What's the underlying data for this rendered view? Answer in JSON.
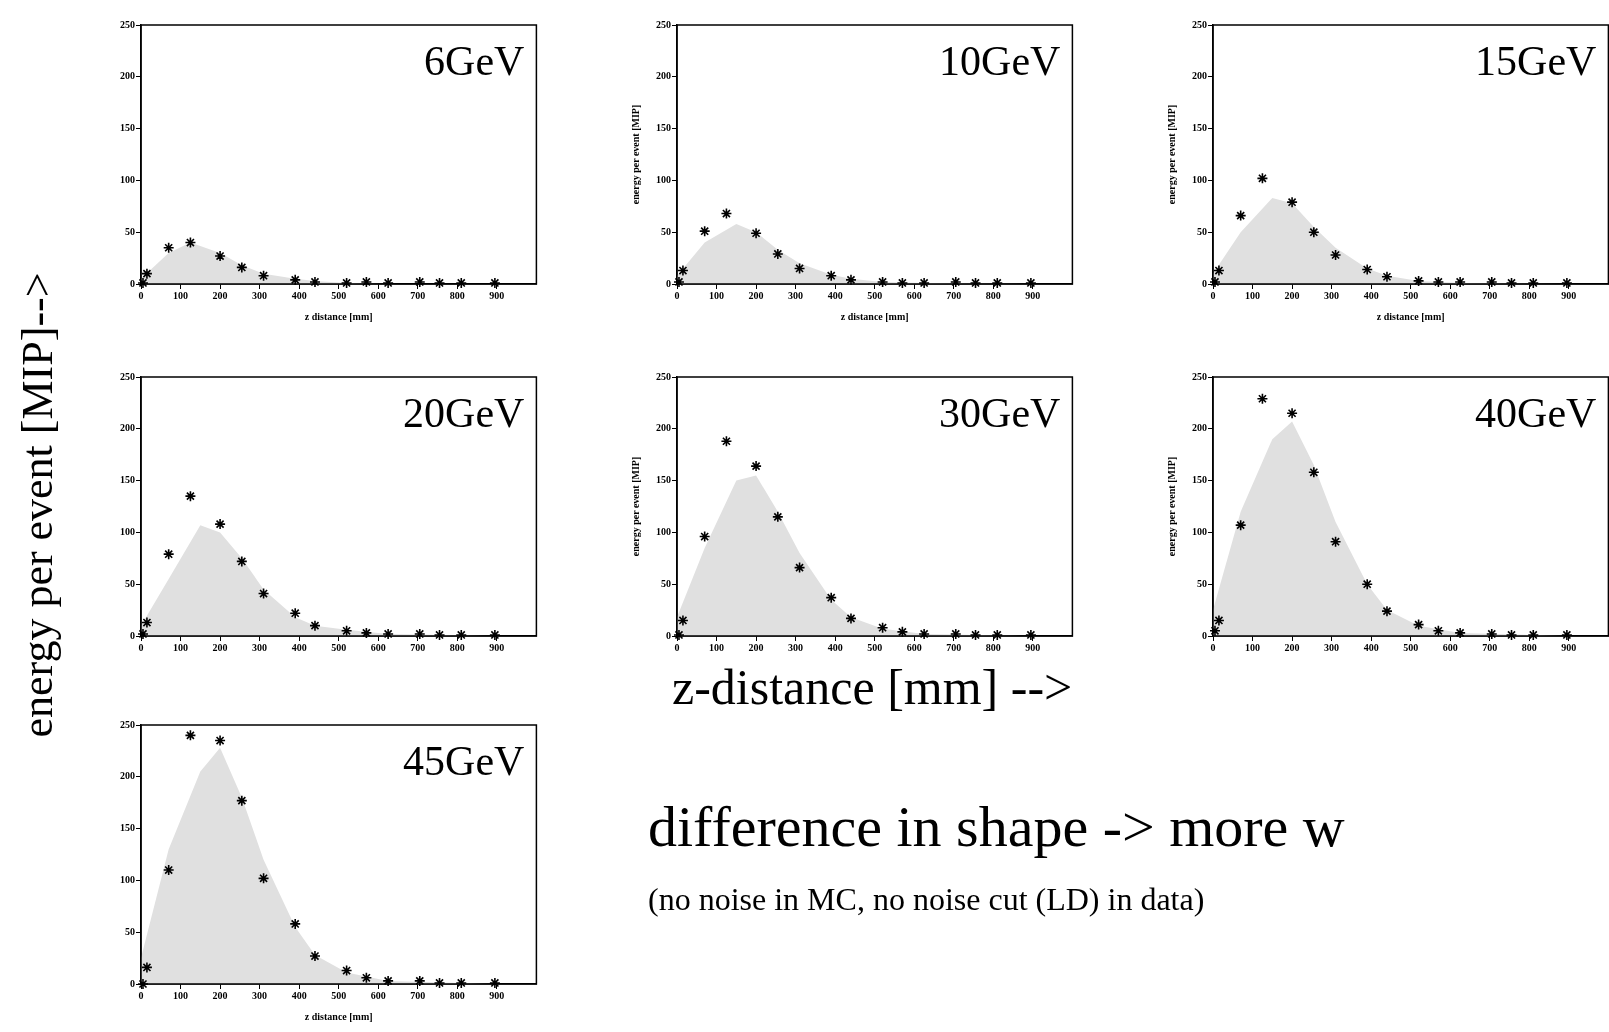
{
  "chart_data": [
    {
      "type": "scatter",
      "title": "6GeV",
      "xlabel": "z distance [mm]",
      "xlim": [
        0,
        1000
      ],
      "xticks": [
        0,
        100,
        200,
        300,
        400,
        500,
        600,
        700,
        800,
        900
      ],
      "ylim": [
        0,
        250
      ],
      "yticks": [
        0,
        50,
        100,
        150,
        200,
        250
      ],
      "grid": false,
      "legend": false,
      "annotations": [
        "energy per event [MIP]-->",
        "z-distance [mm]  -->",
        "difference in shape -> more w",
        "(no noise in MC,  no noise cut (LD) in data)"
      ],
      "series": [
        {
          "type": "area",
          "color": "#e0e0e0",
          "x": [
            0,
            70,
            125,
            200,
            255,
            310,
            390,
            440,
            520,
            625,
            900
          ],
          "values": [
            5,
            30,
            40,
            30,
            18,
            10,
            5,
            3,
            1,
            0,
            0
          ]
        },
        {
          "type": "scatter",
          "marker": "cross",
          "color": "#000000",
          "x": [
            5,
            15,
            70,
            125,
            200,
            255,
            310,
            390,
            440,
            520,
            570,
            625,
            705,
            755,
            810,
            895
          ],
          "values": [
            1,
            10,
            35,
            40,
            27,
            16,
            8,
            4,
            2,
            1,
            2,
            1,
            2,
            1,
            1,
            1
          ]
        }
      ]
    },
    {
      "type": "scatter",
      "title": "10GeV",
      "xlabel": "z distance [mm]",
      "ylabel": "energy per event [MIP]",
      "xlim": [
        0,
        1000
      ],
      "xticks": [
        0,
        100,
        200,
        300,
        400,
        500,
        600,
        700,
        800,
        900
      ],
      "ylim": [
        0,
        250
      ],
      "yticks": [
        0,
        50,
        100,
        150,
        200,
        250
      ],
      "grid": false,
      "legend": false,
      "series": [
        {
          "type": "area",
          "color": "#e0e0e0",
          "x": [
            0,
            70,
            150,
            200,
            255,
            310,
            390,
            440,
            520,
            625,
            900
          ],
          "values": [
            8,
            40,
            58,
            50,
            33,
            20,
            9,
            5,
            2,
            1,
            0
          ]
        },
        {
          "type": "scatter",
          "marker": "cross",
          "color": "#000000",
          "x": [
            5,
            15,
            70,
            125,
            200,
            255,
            310,
            390,
            440,
            520,
            570,
            625,
            705,
            755,
            810,
            895
          ],
          "values": [
            2,
            13,
            51,
            68,
            49,
            29,
            15,
            8,
            4,
            2,
            1,
            1,
            2,
            1,
            1,
            1
          ]
        }
      ]
    },
    {
      "type": "scatter",
      "title": "15GeV",
      "xlabel": "z distance [mm]",
      "ylabel": "energy per event [MIP]",
      "xlim": [
        0,
        1000
      ],
      "xticks": [
        0,
        100,
        200,
        300,
        400,
        500,
        600,
        700,
        800,
        900
      ],
      "ylim": [
        0,
        250
      ],
      "yticks": [
        0,
        50,
        100,
        150,
        200,
        250
      ],
      "grid": false,
      "legend": false,
      "series": [
        {
          "type": "area",
          "color": "#e0e0e0",
          "x": [
            0,
            70,
            150,
            200,
            255,
            310,
            390,
            440,
            520,
            625,
            900
          ],
          "values": [
            10,
            50,
            83,
            78,
            55,
            35,
            15,
            8,
            3,
            1,
            0
          ]
        },
        {
          "type": "scatter",
          "marker": "cross",
          "color": "#000000",
          "x": [
            5,
            15,
            70,
            125,
            200,
            255,
            310,
            390,
            440,
            520,
            570,
            625,
            705,
            755,
            810,
            895
          ],
          "values": [
            2,
            13,
            66,
            102,
            79,
            50,
            28,
            14,
            7,
            3,
            2,
            2,
            2,
            1,
            1,
            1
          ]
        }
      ]
    },
    {
      "type": "scatter",
      "title": "20GeV",
      "xlim": [
        0,
        1000
      ],
      "xticks": [
        0,
        100,
        200,
        300,
        400,
        500,
        600,
        700,
        800,
        900
      ],
      "ylim": [
        0,
        250
      ],
      "yticks": [
        0,
        50,
        100,
        150,
        200,
        250
      ],
      "grid": false,
      "legend": false,
      "series": [
        {
          "type": "area",
          "color": "#e0e0e0",
          "x": [
            0,
            70,
            150,
            200,
            255,
            310,
            390,
            440,
            520,
            625,
            900
          ],
          "values": [
            10,
            55,
            107,
            100,
            75,
            45,
            18,
            10,
            6,
            2,
            0
          ]
        },
        {
          "type": "scatter",
          "marker": "cross",
          "color": "#000000",
          "x": [
            5,
            15,
            70,
            125,
            200,
            255,
            310,
            390,
            440,
            520,
            570,
            625,
            705,
            755,
            810,
            895
          ],
          "values": [
            2,
            13,
            79,
            135,
            108,
            72,
            41,
            22,
            10,
            5,
            3,
            2,
            2,
            1,
            1,
            1
          ]
        }
      ]
    },
    {
      "type": "scatter",
      "title": "30GeV",
      "ylabel": "energy per event [MIP]",
      "xlim": [
        0,
        1000
      ],
      "xticks": [
        0,
        100,
        200,
        300,
        400,
        500,
        600,
        700,
        800,
        900
      ],
      "ylim": [
        0,
        250
      ],
      "yticks": [
        0,
        50,
        100,
        150,
        200,
        250
      ],
      "grid": false,
      "legend": false,
      "series": [
        {
          "type": "area",
          "color": "#e0e0e0",
          "x": [
            0,
            70,
            150,
            200,
            255,
            310,
            390,
            440,
            520,
            625,
            900
          ],
          "values": [
            18,
            85,
            150,
            155,
            120,
            80,
            35,
            18,
            7,
            2,
            0
          ]
        },
        {
          "type": "scatter",
          "marker": "cross",
          "color": "#000000",
          "x": [
            5,
            15,
            70,
            125,
            200,
            255,
            310,
            390,
            440,
            520,
            570,
            625,
            705,
            755,
            810,
            895
          ],
          "values": [
            1,
            15,
            96,
            188,
            164,
            115,
            66,
            37,
            17,
            8,
            4,
            2,
            2,
            1,
            1,
            1
          ]
        }
      ]
    },
    {
      "type": "scatter",
      "title": "40GeV",
      "ylabel": "energy per event [MIP]",
      "xlim": [
        0,
        1000
      ],
      "xticks": [
        0,
        100,
        200,
        300,
        400,
        500,
        600,
        700,
        800,
        900
      ],
      "ylim": [
        0,
        250
      ],
      "yticks": [
        0,
        50,
        100,
        150,
        200,
        250
      ],
      "grid": false,
      "legend": false,
      "series": [
        {
          "type": "area",
          "color": "#e0e0e0",
          "x": [
            0,
            70,
            150,
            200,
            255,
            310,
            390,
            440,
            520,
            625,
            900
          ],
          "values": [
            25,
            120,
            190,
            207,
            165,
            110,
            50,
            25,
            10,
            3,
            0
          ]
        },
        {
          "type": "scatter",
          "marker": "cross",
          "color": "#000000",
          "x": [
            5,
            15,
            70,
            125,
            200,
            255,
            310,
            390,
            440,
            520,
            570,
            625,
            705,
            755,
            810,
            895
          ],
          "values": [
            5,
            15,
            107,
            229,
            215,
            158,
            91,
            50,
            24,
            11,
            5,
            3,
            2,
            1,
            1,
            1
          ]
        }
      ]
    },
    {
      "type": "scatter",
      "title": "45GeV",
      "xlabel": "z distance [mm]",
      "xlim": [
        0,
        1000
      ],
      "xticks": [
        0,
        100,
        200,
        300,
        400,
        500,
        600,
        700,
        800,
        900
      ],
      "ylim": [
        0,
        250
      ],
      "yticks": [
        0,
        50,
        100,
        150,
        200,
        250
      ],
      "grid": false,
      "legend": false,
      "series": [
        {
          "type": "area",
          "color": "#e0e0e0",
          "x": [
            0,
            70,
            150,
            200,
            255,
            310,
            390,
            440,
            520,
            625,
            900
          ],
          "values": [
            25,
            130,
            205,
            228,
            180,
            120,
            55,
            28,
            11,
            3,
            0
          ]
        },
        {
          "type": "scatter",
          "marker": "cross",
          "color": "#000000",
          "x": [
            5,
            15,
            70,
            125,
            200,
            255,
            310,
            390,
            440,
            520,
            570,
            625,
            705,
            755,
            810,
            895
          ],
          "values": [
            0,
            16,
            110,
            240,
            235,
            177,
            102,
            58,
            27,
            13,
            6,
            3,
            3,
            1,
            1,
            1
          ]
        }
      ]
    }
  ]
}
